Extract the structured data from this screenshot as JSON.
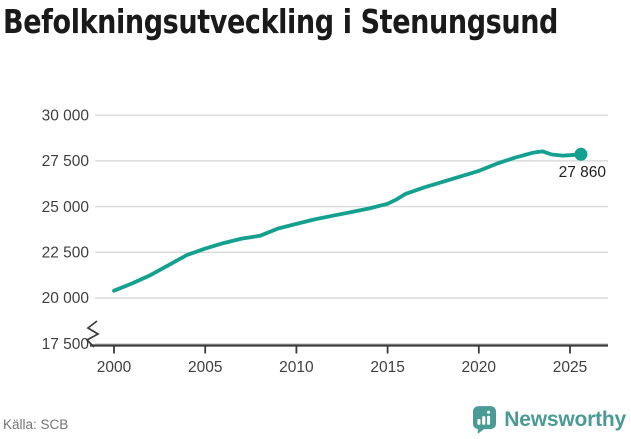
{
  "footer": {
    "source": "Källa: SCB",
    "brand": "Newsworthy"
  },
  "chart_data": {
    "type": "line",
    "title": "Befolkningsutveckling i Stenungsund",
    "xlabel": "",
    "ylabel": "",
    "grid": "horizontal",
    "legend": "none",
    "x_ticks": [
      2000,
      2005,
      2010,
      2015,
      2020,
      2025
    ],
    "x_tick_labels": [
      "2000",
      "2005",
      "2010",
      "2015",
      "2020",
      "2025"
    ],
    "y_ticks": [
      17500,
      20000,
      22500,
      25000,
      27500,
      30000
    ],
    "y_tick_labels": [
      "17 500",
      "20 000",
      "22 500",
      "25 000",
      "27 500",
      "30 000"
    ],
    "ylim": [
      17500,
      30000
    ],
    "xlim": [
      1999,
      2027.2
    ],
    "y_axis_break": true,
    "end_annotation": {
      "label": "27 860",
      "x": 2025.6,
      "y": 27860
    },
    "series": [
      {
        "name": "Befolkning",
        "points": [
          [
            2000,
            20400
          ],
          [
            2001,
            20800
          ],
          [
            2002,
            21250
          ],
          [
            2003,
            21800
          ],
          [
            2004,
            22350
          ],
          [
            2005,
            22700
          ],
          [
            2006,
            23000
          ],
          [
            2007,
            23250
          ],
          [
            2008,
            23400
          ],
          [
            2009,
            23800
          ],
          [
            2010,
            24050
          ],
          [
            2011,
            24300
          ],
          [
            2012,
            24500
          ],
          [
            2013,
            24700
          ],
          [
            2014,
            24900
          ],
          [
            2015,
            25150
          ],
          [
            2015.5,
            25400
          ],
          [
            2016,
            25700
          ],
          [
            2017,
            26050
          ],
          [
            2018,
            26350
          ],
          [
            2019,
            26650
          ],
          [
            2020,
            26950
          ],
          [
            2021,
            27350
          ],
          [
            2022,
            27680
          ],
          [
            2023,
            27950
          ],
          [
            2023.5,
            28020
          ],
          [
            2024,
            27850
          ],
          [
            2024.6,
            27790
          ],
          [
            2025,
            27810
          ],
          [
            2025.6,
            27860
          ]
        ]
      }
    ],
    "colors": {
      "series": "#14a08e",
      "grid": "#d9d9d9",
      "axis": "#3a3a3a",
      "tick_text": "#3f3f3f",
      "annotation_text": "#1f1f1f",
      "brand_teal": "#4a9b96",
      "source_text": "#757575"
    }
  }
}
